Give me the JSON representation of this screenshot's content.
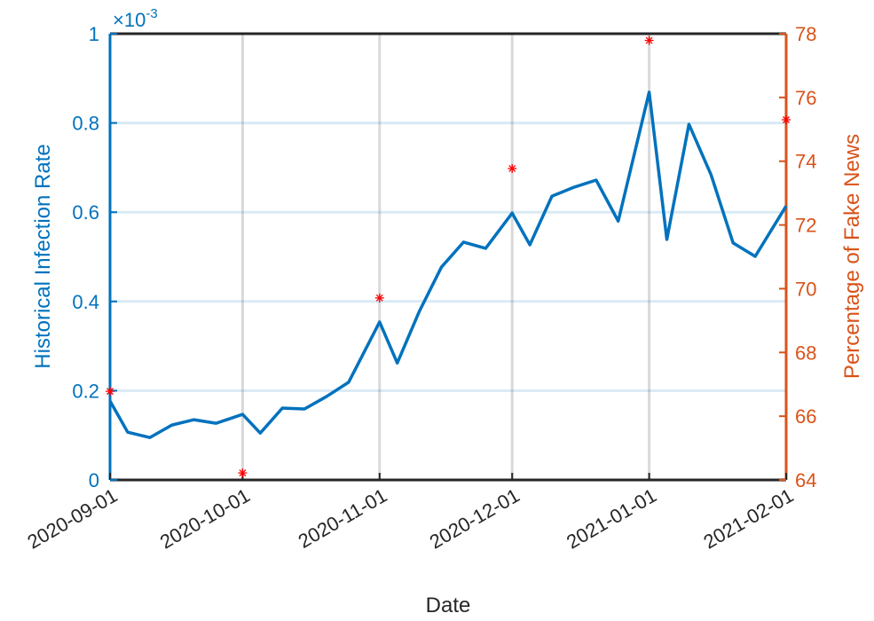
{
  "chart_data": {
    "type": "line",
    "xlabel": "Date",
    "ylabel": "Historical Infection Rate",
    "y2label": "Percentage of Fake News",
    "y_multiplier": {
      "base": "×10",
      "exponent": "-3"
    },
    "xlim": [
      "2020-09-01",
      "2021-02-01"
    ],
    "xticks": [
      "2020-09-01",
      "2020-10-01",
      "2020-11-01",
      "2020-12-01",
      "2021-01-01",
      "2021-02-01"
    ],
    "ylim": [
      0,
      1
    ],
    "yticks": [
      0,
      0.2,
      0.4,
      0.6,
      0.8,
      1
    ],
    "y2lim": [
      64,
      78
    ],
    "y2ticks": [
      64,
      66,
      68,
      70,
      72,
      74,
      76,
      78
    ],
    "grid": true,
    "y_color": "#0072bd",
    "y2_color": "#d95319",
    "series": [
      {
        "color": "#0072bd",
        "x": [
          "2020-09-01",
          "2020-09-05",
          "2020-09-10",
          "2020-09-15",
          "2020-09-20",
          "2020-09-25",
          "2020-10-01",
          "2020-10-05",
          "2020-10-10",
          "2020-10-15",
          "2020-10-20",
          "2020-10-25",
          "2020-11-01",
          "2020-11-05",
          "2020-11-10",
          "2020-11-15",
          "2020-11-20",
          "2020-11-25",
          "2020-12-01",
          "2020-12-05",
          "2020-12-10",
          "2020-12-15",
          "2020-12-20",
          "2020-12-25",
          "2021-01-01",
          "2021-01-05",
          "2021-01-10",
          "2021-01-15",
          "2021-01-20",
          "2021-01-25",
          "2021-02-01"
        ],
        "values": [
          0.177,
          0.107,
          0.095,
          0.123,
          0.135,
          0.127,
          0.147,
          0.105,
          0.161,
          0.159,
          0.187,
          0.219,
          0.354,
          0.262,
          0.378,
          0.477,
          0.533,
          0.519,
          0.598,
          0.527,
          0.636,
          0.656,
          0.672,
          0.58,
          0.869,
          0.539,
          0.797,
          0.684,
          0.531,
          0.501,
          0.614
        ]
      },
      {
        "color": "#ff0000",
        "axis": "y2",
        "marker": "*",
        "x": [
          "2020-09-01",
          "2020-10-01",
          "2020-11-01",
          "2020-12-01",
          "2021-01-01",
          "2021-02-01"
        ],
        "values": [
          66.78,
          64.22,
          69.71,
          73.77,
          77.79,
          75.3
        ]
      }
    ]
  }
}
